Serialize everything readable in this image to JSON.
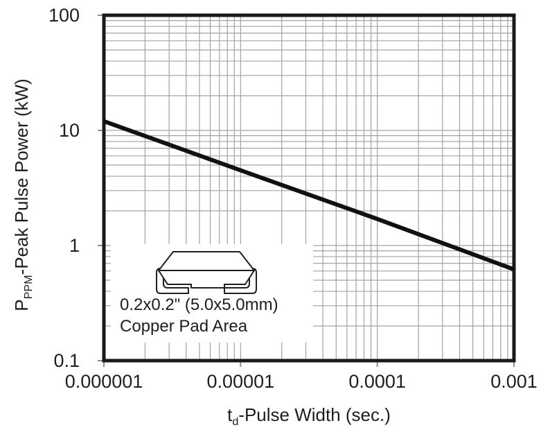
{
  "chart_data": {
    "type": "line",
    "title": "",
    "xlabel": {
      "pre": "t",
      "sub": "d",
      "post": "-Pulse Width (sec.)"
    },
    "ylabel": {
      "pre": "P",
      "sub": "PPM",
      "post": "-Peak Pulse Power (kW)"
    },
    "x_scale": "log",
    "y_scale": "log",
    "xlim": [
      1e-06,
      0.001
    ],
    "ylim": [
      0.1,
      100
    ],
    "x_tick_values": [
      1e-06,
      1e-05,
      0.0001,
      0.001
    ],
    "x_tick_labels": [
      "0.000001",
      "0.00001",
      "0.0001",
      "0.001"
    ],
    "y_tick_values": [
      100,
      10,
      1,
      0.1
    ],
    "y_tick_labels": [
      "100",
      "10",
      "1",
      "0.1"
    ],
    "grid": "log minor gridlines on both axes, light gray",
    "legend": "none",
    "series": [
      {
        "name": "peak-pulse-power-vs-pulse-width",
        "x": [
          1e-06,
          1e-05,
          0.0001,
          0.001
        ],
        "y": [
          12,
          4.5,
          1.7,
          0.62
        ],
        "color": "#111111",
        "width": 6
      }
    ],
    "annotation": {
      "line1": "0.2x0.2\" (5.0x5.0mm)",
      "line2": "Copper Pad Area"
    }
  },
  "colors": {
    "grid": "#a2a2a2",
    "tick": "#8f8f8f",
    "axis": "#1a1a1a",
    "line": "#111111",
    "text": "#1c1e21",
    "background": "#ffffff"
  }
}
